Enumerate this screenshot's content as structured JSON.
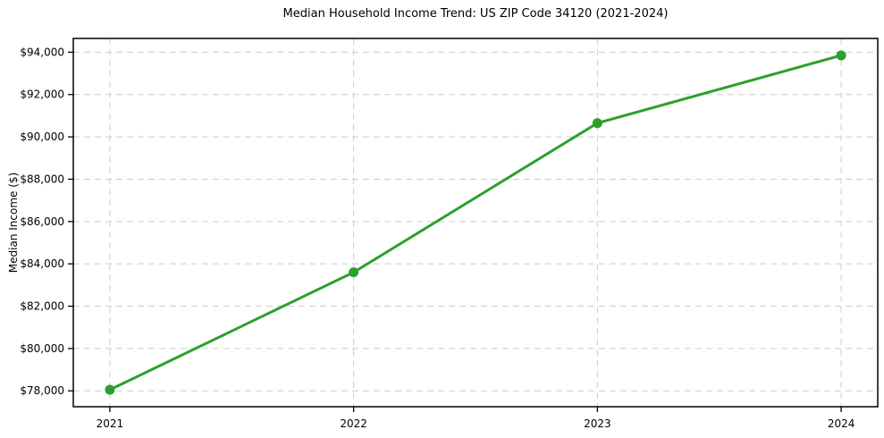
{
  "chart_data": {
    "type": "line",
    "title": "Median Household Income Trend: US ZIP Code 34120 (2021-2024)",
    "xlabel": "",
    "ylabel": "Median Income ($)",
    "x": [
      2021,
      2022,
      2023,
      2024
    ],
    "x_tick_labels": [
      "2021",
      "2022",
      "2023",
      "2024"
    ],
    "series": [
      {
        "name": "Median Household Income",
        "values": [
          78050,
          83600,
          90650,
          93850
        ],
        "color": "#2ca02c",
        "marker": "circle",
        "line_width": 3
      }
    ],
    "y_ticks": [
      78000,
      80000,
      82000,
      84000,
      86000,
      88000,
      90000,
      92000,
      94000
    ],
    "y_tick_labels": [
      "$78,000",
      "$80,000",
      "$82,000",
      "$84,000",
      "$86,000",
      "$88,000",
      "$90,000",
      "$92,000",
      "$94,000"
    ],
    "xlim": [
      2020.85,
      2024.15
    ],
    "ylim": [
      77250,
      94650
    ],
    "grid": true,
    "grid_style": "dashed",
    "legend": "none"
  },
  "style": {
    "line_color": "#2ca02c",
    "marker_color": "#2ca02c",
    "grid_color": "#cccccc",
    "axis_color": "#000000",
    "background_color": "#ffffff",
    "text_color": "#000000"
  }
}
